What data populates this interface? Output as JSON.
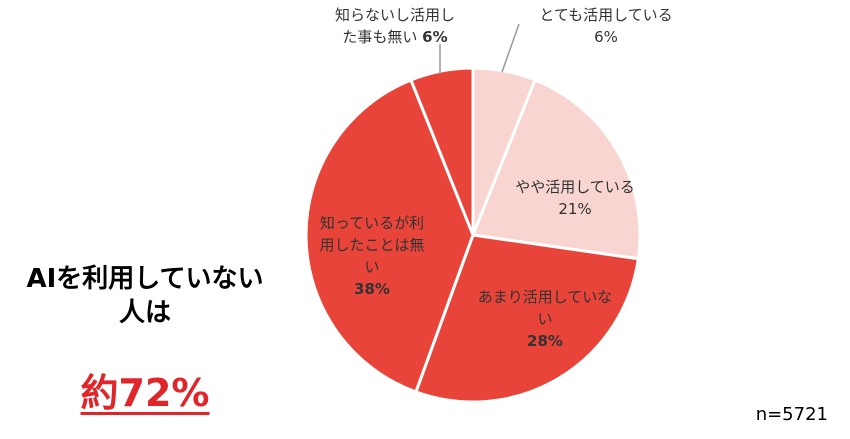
{
  "chart_data": {
    "type": "pie",
    "title": "",
    "slices": [
      {
        "label": "とても活用している",
        "value": 6,
        "value_text": "6%",
        "color": "#f8d5d1"
      },
      {
        "label": "やや活用している",
        "value": 21,
        "value_text": "21%",
        "color": "#f8d5d1"
      },
      {
        "label": "あまり活用していない",
        "value": 28,
        "value_text": "28%",
        "color": "#e8443a"
      },
      {
        "label": "知っているが利用したことは無い",
        "value": 38,
        "value_text": "38%",
        "color": "#e8443a"
      },
      {
        "label": "知らないし活用した事も無い",
        "value": 6,
        "value_text": "6%",
        "color": "#e8443a"
      }
    ]
  },
  "summary": {
    "line1": "AIを利用していない",
    "line2": "人は",
    "percentage": "約72%"
  },
  "sample_size": "n=5721"
}
